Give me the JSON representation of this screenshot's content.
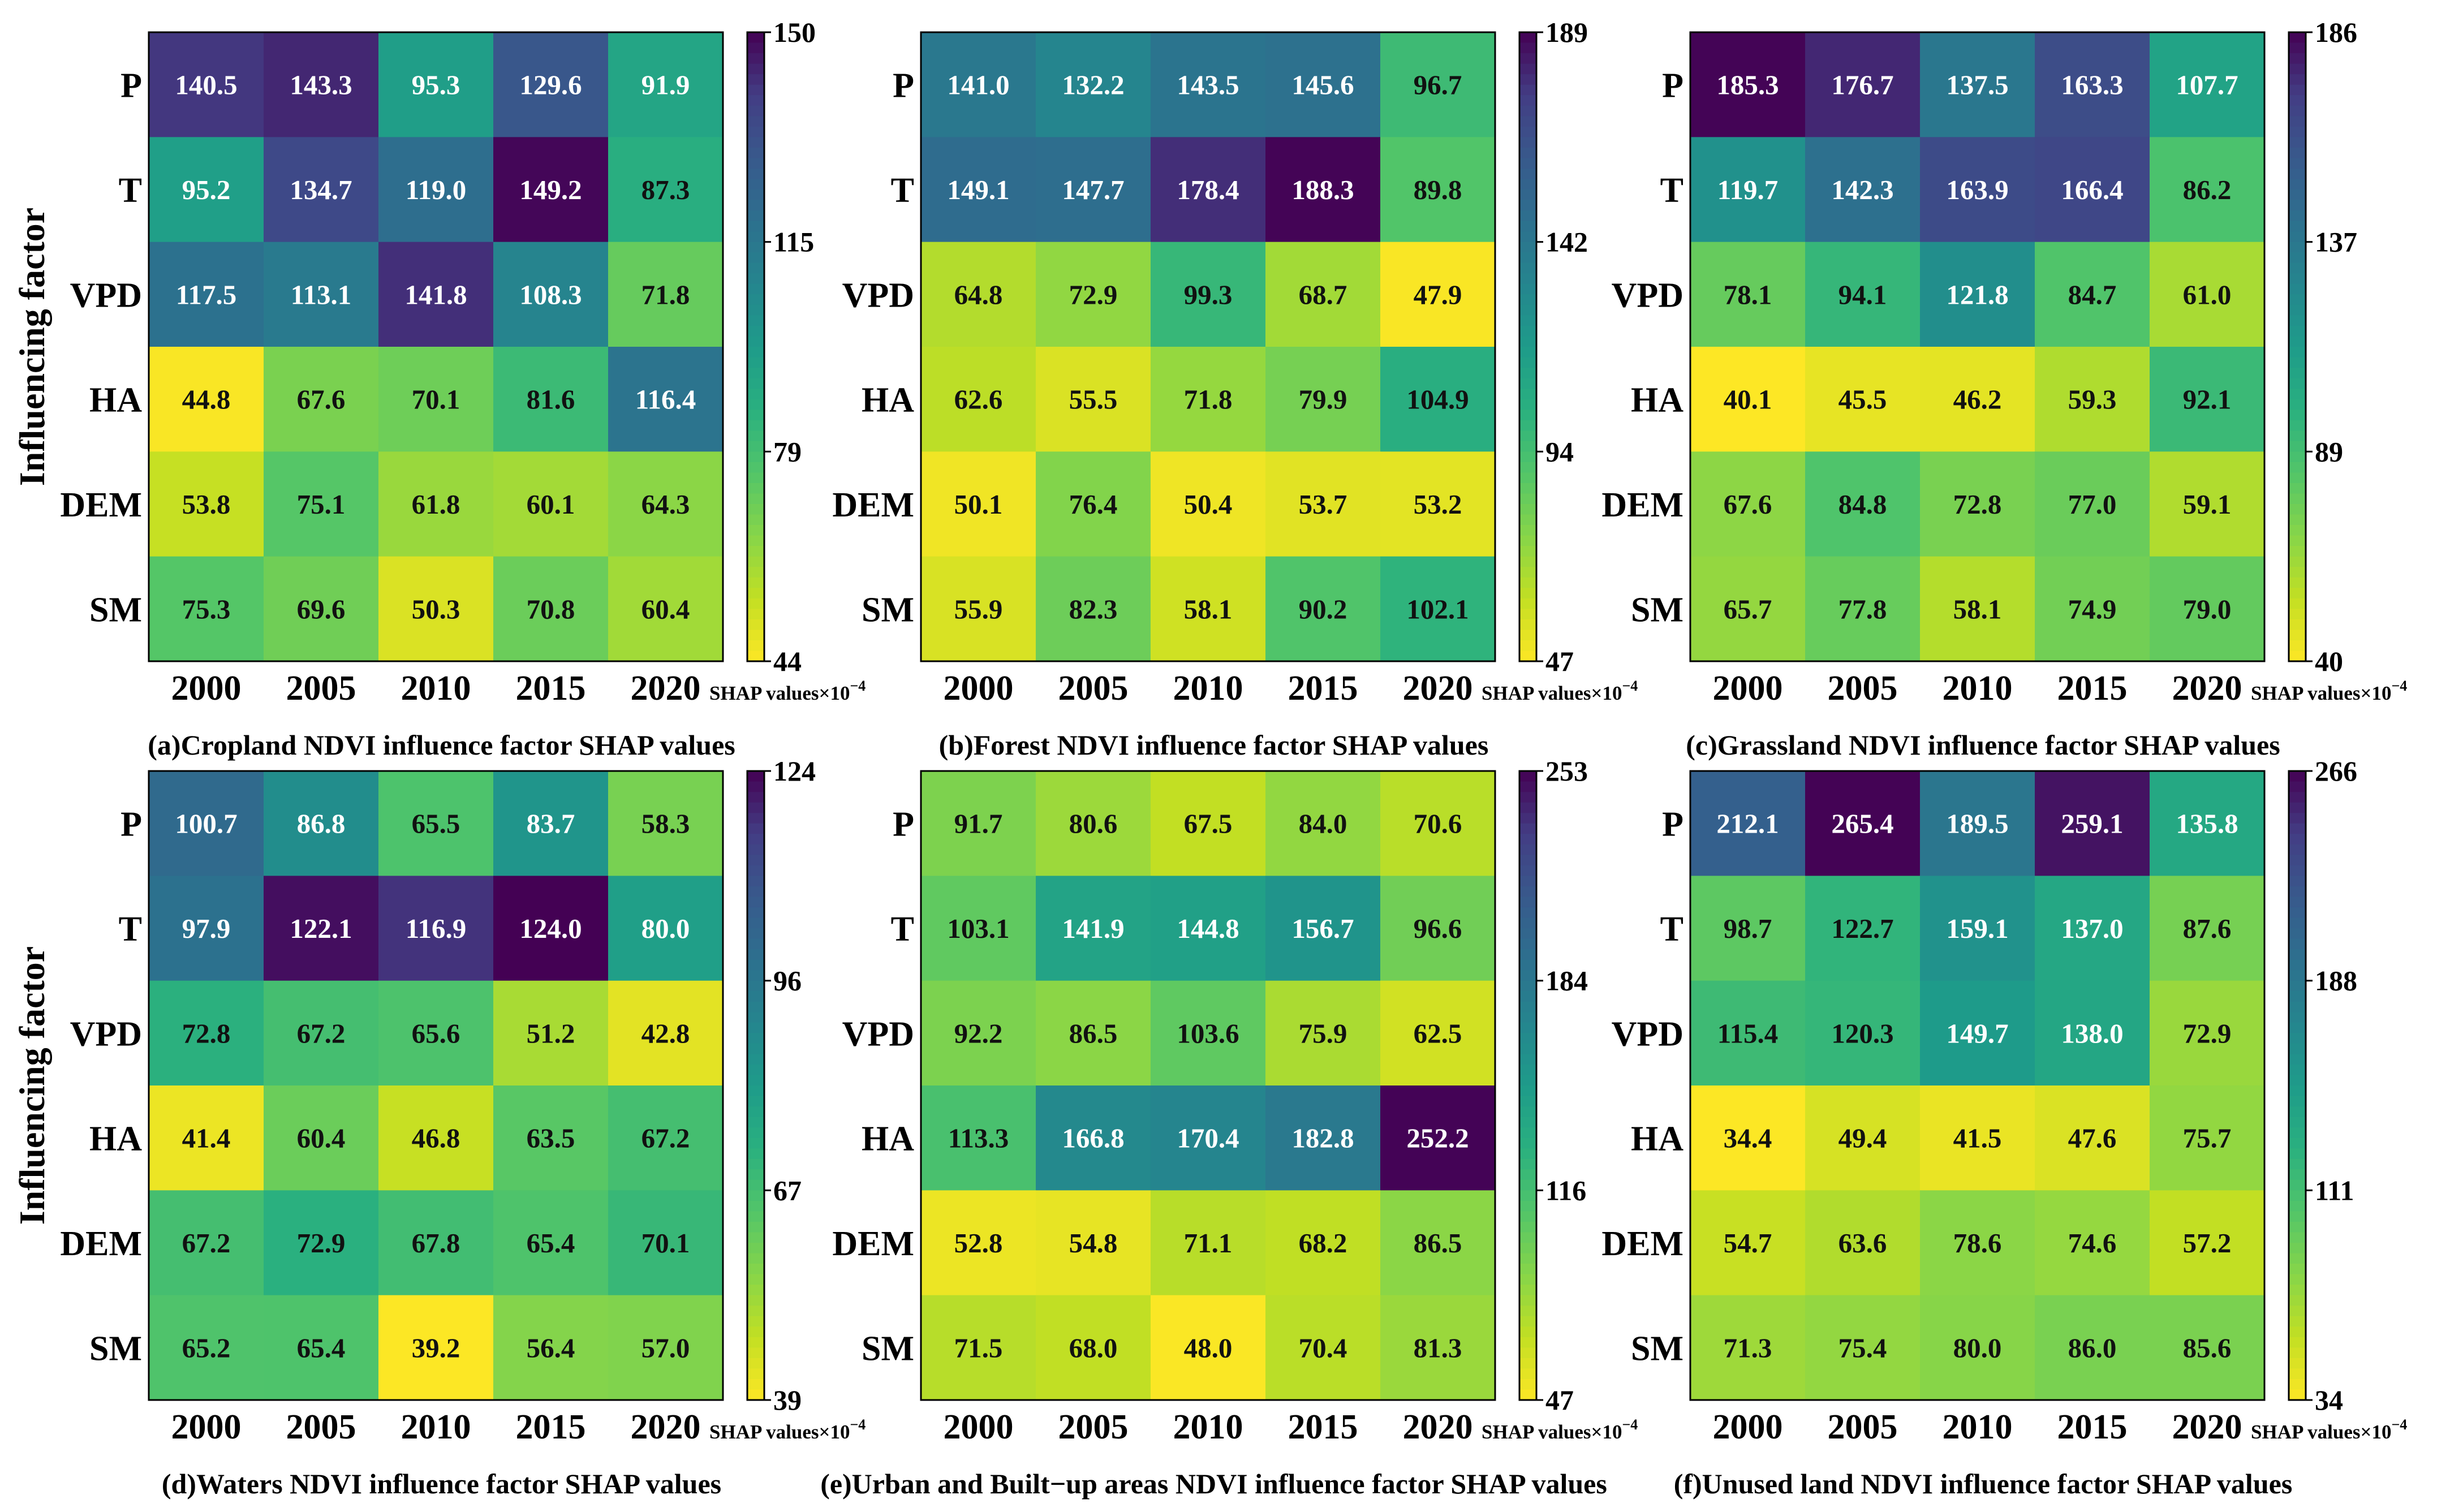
{
  "figure": {
    "ylabel": "Influencing factor",
    "colorbar_unit": "SHAP values×10",
    "colorbar_unit_exp": "−4"
  },
  "chart_data": [
    {
      "type": "heatmap",
      "id": "a",
      "title": "(a)Cropland NDVI influence factor SHAP values",
      "xlabel": "",
      "ylabel": "Influencing factor",
      "rows": [
        "P",
        "T",
        "VPD",
        "HA",
        "DEM",
        "SM"
      ],
      "columns": [
        "2000",
        "2005",
        "2010",
        "2015",
        "2020"
      ],
      "values": [
        [
          140.5,
          143.3,
          95.3,
          129.6,
          91.9
        ],
        [
          95.2,
          134.7,
          119.0,
          149.2,
          87.3
        ],
        [
          117.5,
          113.1,
          141.8,
          108.3,
          71.8
        ],
        [
          44.8,
          67.6,
          70.1,
          81.6,
          116.4
        ],
        [
          53.8,
          75.1,
          61.8,
          60.1,
          64.3
        ],
        [
          75.3,
          69.6,
          50.3,
          70.8,
          60.4
        ]
      ],
      "colorbar": {
        "min": 44,
        "max": 150,
        "ticks": [
          "44",
          "79",
          "115",
          "150"
        ],
        "label": "SHAP values×10⁻⁴"
      }
    },
    {
      "type": "heatmap",
      "id": "b",
      "title": "(b)Forest NDVI influence factor SHAP values",
      "xlabel": "",
      "ylabel": "",
      "rows": [
        "P",
        "T",
        "VPD",
        "HA",
        "DEM",
        "SM"
      ],
      "columns": [
        "2000",
        "2005",
        "2010",
        "2015",
        "2020"
      ],
      "values": [
        [
          141.0,
          132.2,
          143.5,
          145.6,
          96.7
        ],
        [
          149.1,
          147.7,
          178.4,
          188.3,
          89.8
        ],
        [
          64.8,
          72.9,
          99.3,
          68.7,
          47.9
        ],
        [
          62.6,
          55.5,
          71.8,
          79.9,
          104.9
        ],
        [
          50.1,
          76.4,
          50.4,
          53.7,
          53.2
        ],
        [
          55.9,
          82.3,
          58.1,
          90.2,
          102.1
        ]
      ],
      "colorbar": {
        "min": 47,
        "max": 189,
        "ticks": [
          "47",
          "94",
          "142",
          "189"
        ],
        "label": "SHAP values×10⁻⁴"
      }
    },
    {
      "type": "heatmap",
      "id": "c",
      "title": "(c)Grassland NDVI influence factor SHAP values",
      "xlabel": "",
      "ylabel": "",
      "rows": [
        "P",
        "T",
        "VPD",
        "HA",
        "DEM",
        "SM"
      ],
      "columns": [
        "2000",
        "2005",
        "2010",
        "2015",
        "2020"
      ],
      "values": [
        [
          185.3,
          176.7,
          137.5,
          163.3,
          107.7
        ],
        [
          119.7,
          142.3,
          163.9,
          166.4,
          86.2
        ],
        [
          78.1,
          94.1,
          121.8,
          84.7,
          61.0
        ],
        [
          40.1,
          45.5,
          46.2,
          59.3,
          92.1
        ],
        [
          67.6,
          84.8,
          72.8,
          77.0,
          59.1
        ],
        [
          65.7,
          77.8,
          58.1,
          74.9,
          79.0
        ]
      ],
      "colorbar": {
        "min": 40,
        "max": 186,
        "ticks": [
          "40",
          "89",
          "137",
          "186"
        ],
        "label": "SHAP values×10⁻⁴"
      }
    },
    {
      "type": "heatmap",
      "id": "d",
      "title": "(d)Waters NDVI influence factor SHAP values",
      "xlabel": "",
      "ylabel": "Influencing factor",
      "rows": [
        "P",
        "T",
        "VPD",
        "HA",
        "DEM",
        "SM"
      ],
      "columns": [
        "2000",
        "2005",
        "2010",
        "2015",
        "2020"
      ],
      "values": [
        [
          100.7,
          86.8,
          65.5,
          83.7,
          58.3
        ],
        [
          97.9,
          122.1,
          116.9,
          124.0,
          80.0
        ],
        [
          72.8,
          67.2,
          65.6,
          51.2,
          42.8
        ],
        [
          41.4,
          60.4,
          46.8,
          63.5,
          67.2
        ],
        [
          67.2,
          72.9,
          67.8,
          65.4,
          70.1
        ],
        [
          65.2,
          65.4,
          39.2,
          56.4,
          57.0
        ]
      ],
      "colorbar": {
        "min": 39,
        "max": 124,
        "ticks": [
          "39",
          "67",
          "96",
          "124"
        ],
        "label": "SHAP values×10⁻⁴"
      }
    },
    {
      "type": "heatmap",
      "id": "e",
      "title": "(e)Urban and Built−up areas NDVI influence factor SHAP values",
      "xlabel": "",
      "ylabel": "",
      "rows": [
        "P",
        "T",
        "VPD",
        "HA",
        "DEM",
        "SM"
      ],
      "columns": [
        "2000",
        "2005",
        "2010",
        "2015",
        "2020"
      ],
      "values": [
        [
          91.7,
          80.6,
          67.5,
          84.0,
          70.6
        ],
        [
          103.1,
          141.9,
          144.8,
          156.7,
          96.6
        ],
        [
          92.2,
          86.5,
          103.6,
          75.9,
          62.5
        ],
        [
          113.3,
          166.8,
          170.4,
          182.8,
          252.2
        ],
        [
          52.8,
          54.8,
          71.1,
          68.2,
          86.5
        ],
        [
          71.5,
          68.0,
          48.0,
          70.4,
          81.3
        ]
      ],
      "colorbar": {
        "min": 47,
        "max": 253,
        "ticks": [
          "47",
          "116",
          "184",
          "253"
        ],
        "label": "SHAP values×10⁻⁴"
      }
    },
    {
      "type": "heatmap",
      "id": "f",
      "title": "(f)Unused land NDVI influence factor SHAP values",
      "xlabel": "",
      "ylabel": "",
      "rows": [
        "P",
        "T",
        "VPD",
        "HA",
        "DEM",
        "SM"
      ],
      "columns": [
        "2000",
        "2005",
        "2010",
        "2015",
        "2020"
      ],
      "values": [
        [
          212.1,
          265.4,
          189.5,
          259.1,
          135.8
        ],
        [
          98.7,
          122.7,
          159.1,
          137.0,
          87.6
        ],
        [
          115.4,
          120.3,
          149.7,
          138.0,
          72.9
        ],
        [
          34.4,
          49.4,
          41.5,
          47.6,
          75.7
        ],
        [
          54.7,
          63.6,
          78.6,
          74.6,
          57.2
        ],
        [
          71.3,
          75.4,
          80.0,
          86.0,
          85.6
        ]
      ],
      "colorbar": {
        "min": 34,
        "max": 266,
        "ticks": [
          "34",
          "111",
          "188",
          "266"
        ],
        "label": "SHAP values×10⁻⁴"
      }
    }
  ]
}
